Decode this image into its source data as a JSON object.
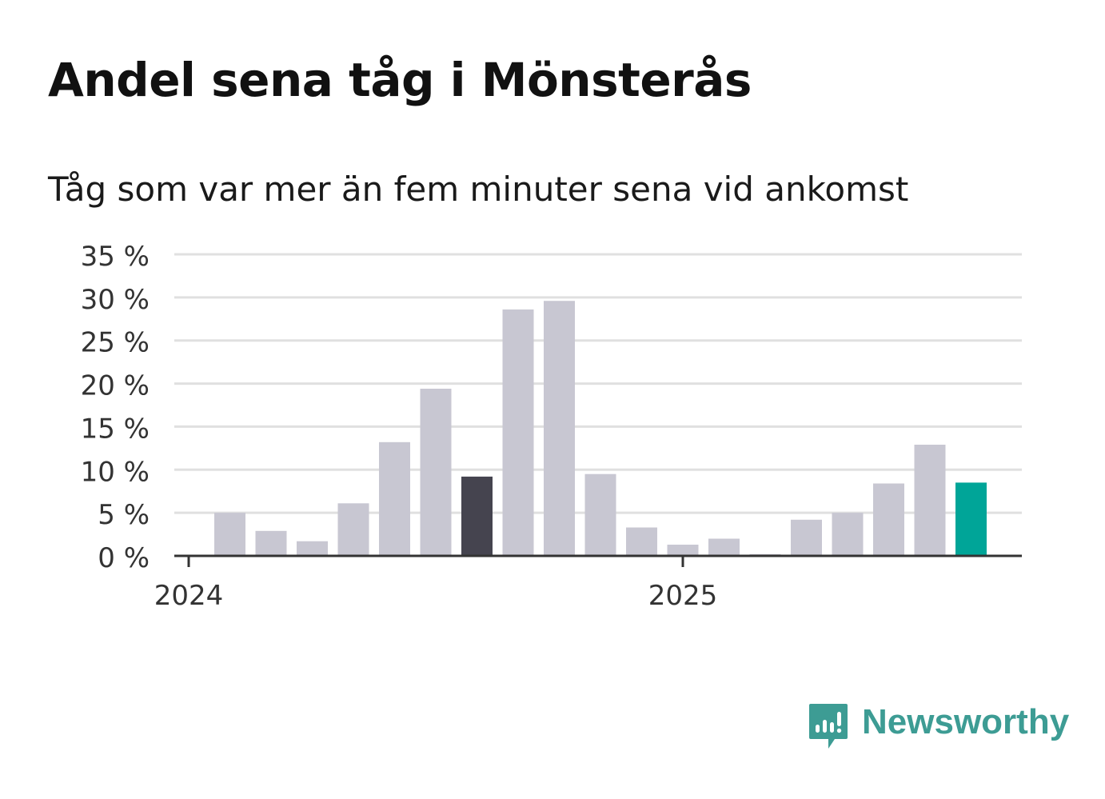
{
  "title": "Andel sena tåg i Mönsterås",
  "subtitle": "Tåg som var mer än fem minuter sena vid ankomst",
  "brand": {
    "name": "Newsworthy",
    "icon": "newsworthy-logo-icon",
    "color": "#3d9c94"
  },
  "chart_data": {
    "type": "bar",
    "title": "Andel sena tåg i Mönsterås",
    "subtitle": "Tåg som var mer än fem minuter sena vid ankomst",
    "xlabel": "",
    "ylabel": "",
    "ylim": [
      0,
      35
    ],
    "yticks": [
      0,
      5,
      10,
      15,
      20,
      25,
      30,
      35
    ],
    "ytick_labels": [
      "0 %",
      "5 %",
      "10 %",
      "15 %",
      "20 %",
      "25 %",
      "30 %",
      "35 %"
    ],
    "xtick_labels": [
      "2024",
      "2025"
    ],
    "grid": true,
    "legend": "none",
    "categories": [
      "2024-01",
      "2024-02",
      "2024-03",
      "2024-04",
      "2024-05",
      "2024-06",
      "2024-07",
      "2024-08",
      "2024-09",
      "2024-10",
      "2024-11",
      "2024-12",
      "2025-01",
      "2025-02",
      "2025-03",
      "2025-04",
      "2025-05",
      "2025-06",
      "2025-07",
      "2025-08"
    ],
    "values": [
      0,
      5.0,
      2.9,
      1.7,
      6.1,
      13.2,
      19.4,
      9.2,
      28.6,
      29.6,
      9.5,
      3.3,
      1.3,
      2.0,
      0.2,
      4.2,
      5.0,
      8.4,
      12.9,
      8.5
    ],
    "colors": {
      "default": "#c8c7d2",
      "highlight_dark": "#45444f",
      "highlight_latest": "#00a598"
    },
    "highlights": {
      "2024-08": "highlight_dark",
      "2025-08": "highlight_latest"
    }
  }
}
